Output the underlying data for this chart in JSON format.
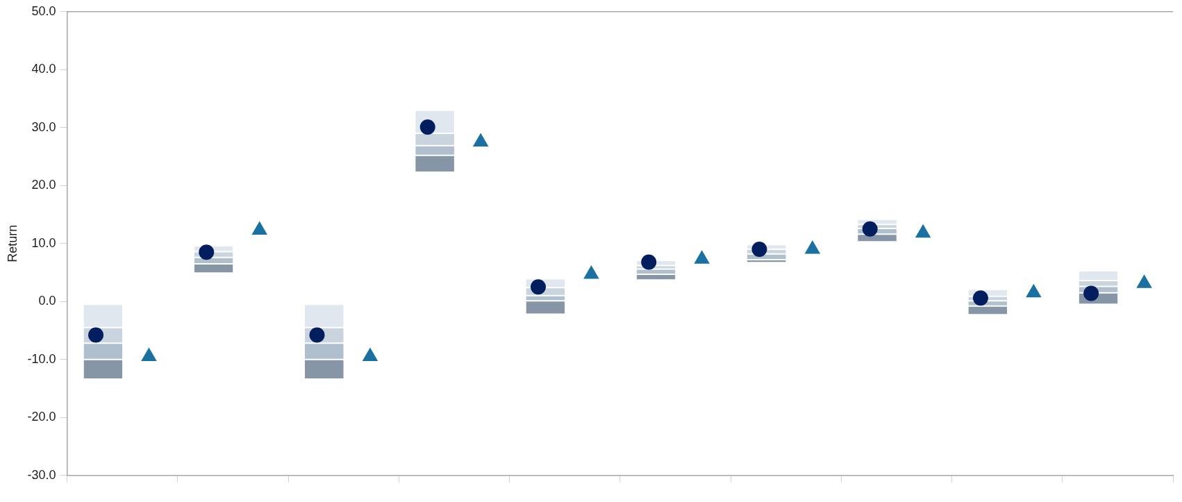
{
  "chart_data": {
    "type": "bar",
    "ylabel": "Return",
    "categories": [
      null,
      null,
      null,
      null,
      null,
      null,
      null,
      null,
      null,
      null
    ],
    "series": [
      {
        "color": "#8696a7",
        "base": [
          -13.4,
          4.9,
          -13.4,
          22.3,
          -2.2,
          3.7,
          6.7,
          10.3,
          -2.3,
          -0.5
        ],
        "values": [
          3.4,
          1.6,
          3.4,
          2.9,
          2.3,
          1.0,
          0.5,
          1.3,
          1.5,
          2.0
        ]
      },
      {
        "color": "#afbfcd",
        "base": [
          -10.0,
          6.5,
          -10.0,
          25.2,
          0.1,
          4.7,
          7.2,
          11.6,
          -0.8,
          1.5
        ],
        "values": [
          2.8,
          1.1,
          2.8,
          1.7,
          0.9,
          0.9,
          1.0,
          1.0,
          0.9,
          1.1
        ]
      },
      {
        "color": "#c9d4de",
        "base": [
          -7.2,
          7.6,
          -7.2,
          26.9,
          1.0,
          5.6,
          8.2,
          12.6,
          0.1,
          2.6
        ],
        "values": [
          2.7,
          1.0,
          2.7,
          2.1,
          1.4,
          0.6,
          0.8,
          0.7,
          0.8,
          1.0
        ]
      },
      {
        "color": "#e1e7ef",
        "base": [
          -4.5,
          8.6,
          -4.5,
          29.0,
          2.4,
          6.2,
          9.0,
          13.3,
          0.9,
          3.6
        ],
        "values": [
          4.0,
          1.0,
          4.0,
          4.0,
          1.5,
          0.9,
          0.8,
          0.9,
          1.2,
          1.7
        ]
      },
      {
        "type": "scatter",
        "marker": "circle",
        "color": "#031e5e",
        "values": [
          -5.8,
          8.5,
          -5.8,
          30.1,
          2.5,
          6.8,
          9.0,
          12.5,
          0.6,
          1.4
        ]
      },
      {
        "type": "scatter",
        "marker": "triangle",
        "color": "#1a70a0",
        "values": [
          -9.5,
          12.3,
          -9.5,
          27.5,
          4.7,
          7.3,
          9.0,
          11.8,
          1.5,
          3.1
        ]
      }
    ],
    "ylim": [
      -30,
      50
    ],
    "yticks": [
      {
        "value": -30,
        "label": "-30.0"
      },
      {
        "value": -20,
        "label": "-20.0"
      },
      {
        "value": -10,
        "label": "-10.0"
      },
      {
        "value": 0,
        "label": "0.0"
      },
      {
        "value": 10,
        "label": "10.0"
      },
      {
        "value": 20,
        "label": "20.0"
      },
      {
        "value": 30,
        "label": "30.0"
      },
      {
        "value": 40,
        "label": "40.0"
      },
      {
        "value": 50,
        "label": "50.0"
      }
    ],
    "grid": false,
    "legend": false
  }
}
